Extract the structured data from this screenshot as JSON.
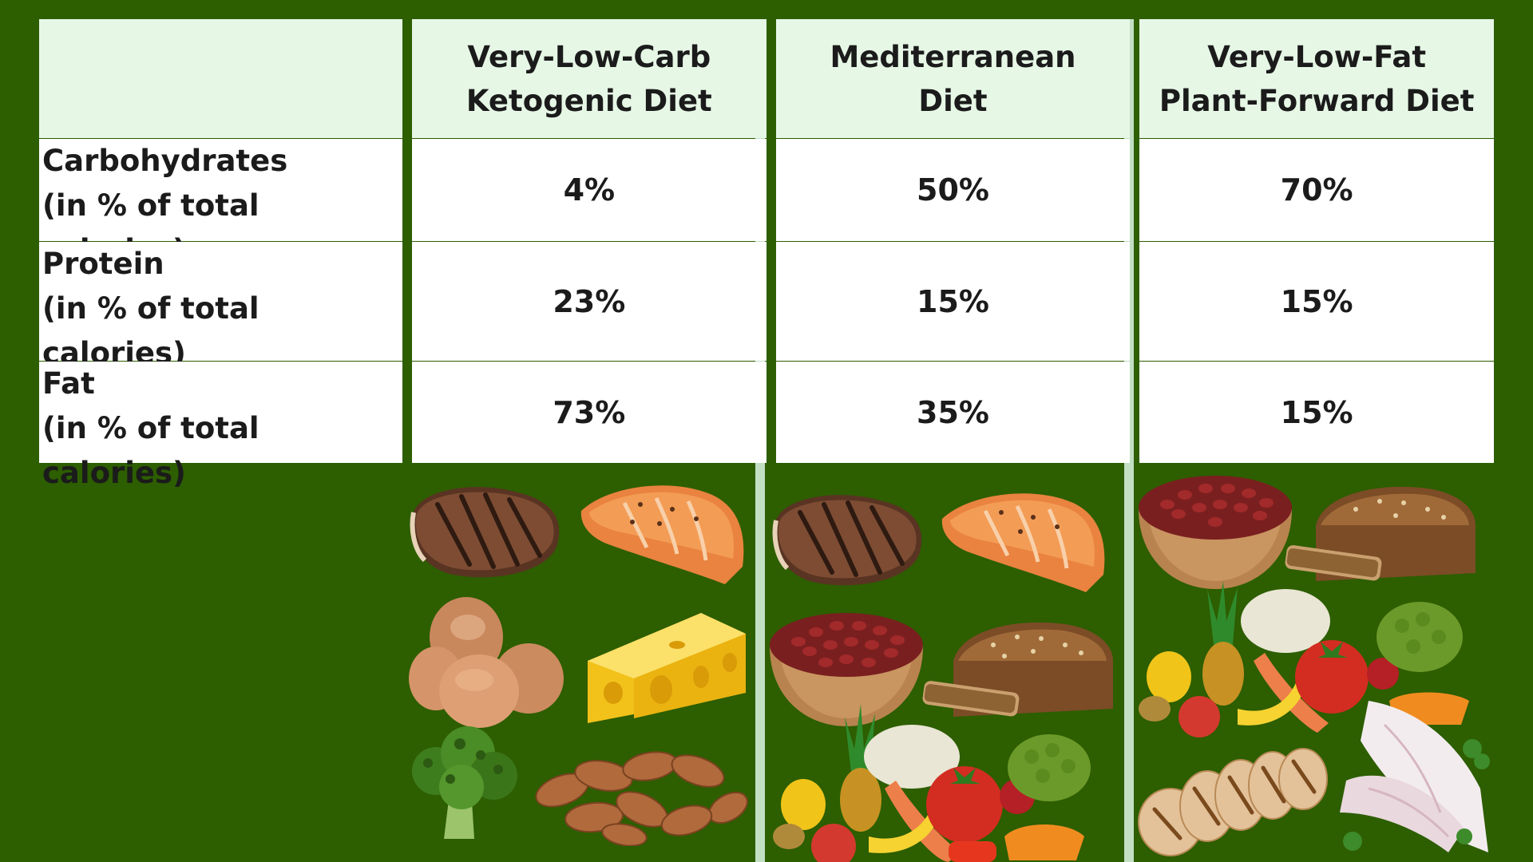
{
  "table": {
    "columns": [
      {
        "line1": "Very-Low-Carb",
        "line2": "Ketogenic Diet"
      },
      {
        "line1": "Mediterranean",
        "line2": "Diet"
      },
      {
        "line1": "Very-Low-Fat",
        "line2": "Plant-Forward Diet"
      }
    ],
    "rows": [
      {
        "label": "Carbohydrates",
        "sublabel": "(in % of total calories)",
        "values": [
          "4%",
          "50%",
          "70%"
        ]
      },
      {
        "label": "Protein",
        "sublabel": "(in % of total calories)",
        "values": [
          "23%",
          "15%",
          "15%"
        ]
      },
      {
        "label": "Fat",
        "sublabel": "(in % of total calories)",
        "values": [
          "73%",
          "35%",
          "15%"
        ]
      }
    ]
  },
  "food_images": {
    "keto": [
      "steak",
      "salmon",
      "eggs",
      "cheese",
      "broccoli",
      "almonds"
    ],
    "mediterranean": [
      "steak",
      "salmon",
      "red-beans",
      "whole-grain-bread",
      "fruits-and-vegetables"
    ],
    "plant_forward": [
      "red-beans",
      "whole-grain-bread",
      "fruits-and-vegetables",
      "grilled-chicken",
      "white-fish"
    ]
  },
  "colors": {
    "background": "#2d5e00",
    "header_fill": "#e6f7e6",
    "separator": "#c2dfc4"
  }
}
